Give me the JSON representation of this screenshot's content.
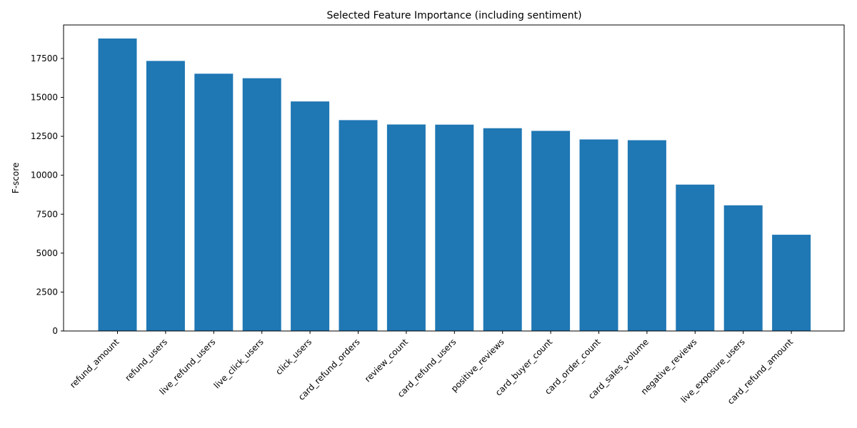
{
  "chart_data": {
    "type": "bar",
    "title": "Selected Feature Importance (including sentiment)",
    "xlabel": "",
    "ylabel": "F-score",
    "categories": [
      "refund_amount",
      "refund_users",
      "live_refund_users",
      "live_click_users",
      "click_users",
      "card_refund_orders",
      "review_count",
      "card_refund_users",
      "positive_reviews",
      "card_buyer_count",
      "card_order_count",
      "card_sales_volume",
      "negative_reviews",
      "live_exposure_users",
      "card_refund_amount"
    ],
    "values": [
      18780,
      17340,
      16520,
      16230,
      14740,
      13540,
      13260,
      13250,
      13020,
      12850,
      12300,
      12250,
      9400,
      8070,
      6180
    ],
    "ylim": [
      0,
      19650
    ],
    "yticks": [
      0,
      2500,
      5000,
      7500,
      10000,
      12500,
      15000,
      17500
    ],
    "ytick_labels": [
      "0",
      "2500",
      "5000",
      "7500",
      "10000",
      "12500",
      "15000",
      "17500"
    ],
    "bar_color": "#1f77b4",
    "grid": false,
    "legend": "none"
  }
}
